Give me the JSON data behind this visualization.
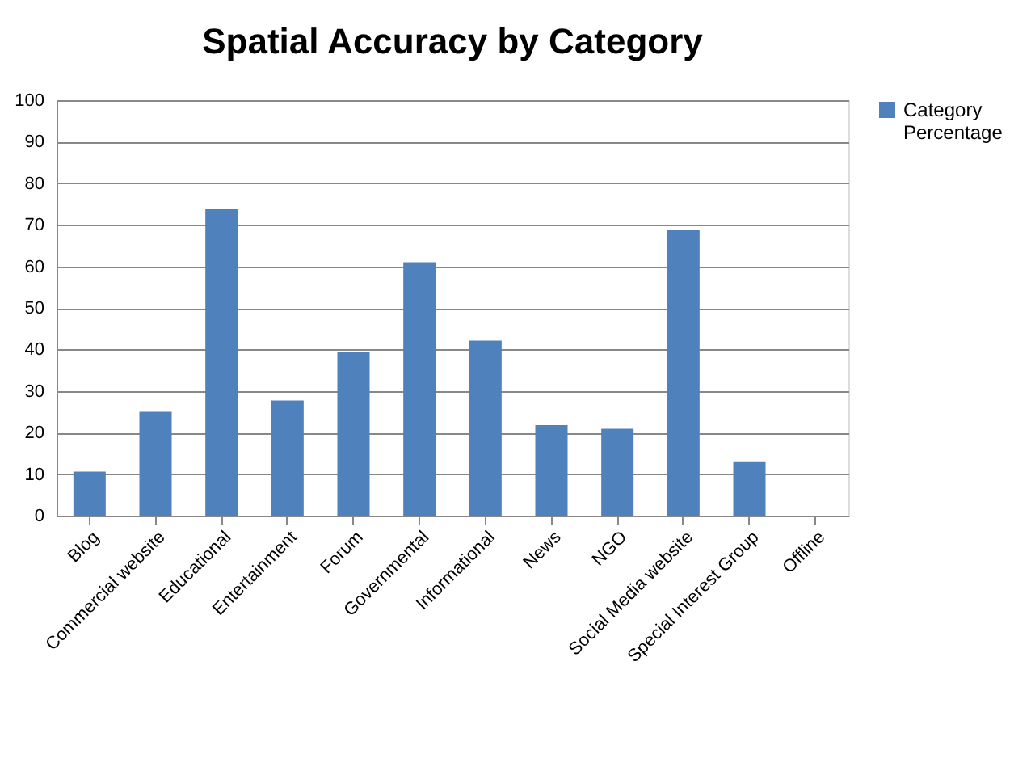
{
  "chart_data": {
    "type": "bar",
    "title": "Spatial Accuracy by Category",
    "categories": [
      "Blog",
      "Commercial website",
      "Educational",
      "Entertainment",
      "Forum",
      "Governmental",
      "Informational",
      "News",
      "NGO",
      "Social Media website",
      "Special Interest Group",
      "Offline"
    ],
    "series": [
      {
        "name": "Category Percentage",
        "color": "#4f81bd",
        "values": [
          10.6,
          25,
          73.9,
          27.7,
          39.5,
          61,
          42.1,
          21.8,
          20.9,
          68.8,
          12.9,
          0
        ]
      }
    ],
    "ylim": [
      0,
      100
    ],
    "yticks": [
      0,
      10,
      20,
      30,
      40,
      50,
      60,
      70,
      80,
      90,
      100
    ],
    "grid": "y",
    "legend": "right"
  }
}
